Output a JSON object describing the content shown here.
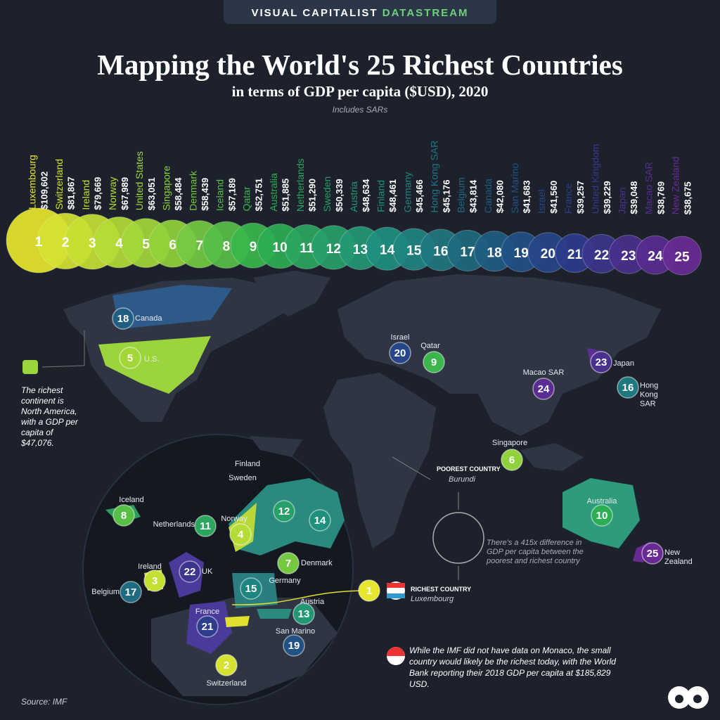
{
  "header": {
    "brand": "VISUAL CAPITALIST",
    "brand_accent": "DATASTREAM",
    "title": "Mapping the World's 25 Richest Countries",
    "subtitle": "in terms of GDP per capita ($USD), 2020",
    "note": "Includes SARs"
  },
  "countries": [
    {
      "rank": 1,
      "name": "Luxembourg",
      "gdp": 109602,
      "gdp_label": "$109,602"
    },
    {
      "rank": 2,
      "name": "Switzerland",
      "gdp": 81867,
      "gdp_label": "$81,867",
      "map_label": "Switzerland"
    },
    {
      "rank": 3,
      "name": "Ireland",
      "gdp": 79669,
      "gdp_label": "$79,669",
      "map_label": "Ireland"
    },
    {
      "rank": 4,
      "name": "Norway",
      "gdp": 67989,
      "gdp_label": "$67,989",
      "map_label": "Norway"
    },
    {
      "rank": 5,
      "name": "United States",
      "gdp": 63051,
      "gdp_label": "$63,051",
      "map_label": "U.S."
    },
    {
      "rank": 6,
      "name": "Singapore",
      "gdp": 58484,
      "gdp_label": "$58,484",
      "map_label": "Singapore"
    },
    {
      "rank": 7,
      "name": "Denmark",
      "gdp": 58439,
      "gdp_label": "$58,439",
      "map_label": "Denmark"
    },
    {
      "rank": 8,
      "name": "Iceland",
      "gdp": 57189,
      "gdp_label": "$57,189",
      "map_label": "Iceland"
    },
    {
      "rank": 9,
      "name": "Qatar",
      "gdp": 52751,
      "gdp_label": "$52,751",
      "map_label": "Qatar"
    },
    {
      "rank": 10,
      "name": "Australia",
      "gdp": 51885,
      "gdp_label": "$51,885",
      "map_label": "Australia"
    },
    {
      "rank": 11,
      "name": "Netherlands",
      "gdp": 51290,
      "gdp_label": "$51,290",
      "map_label": "Netherlands"
    },
    {
      "rank": 12,
      "name": "Sweden",
      "gdp": 50339,
      "gdp_label": "$50,339",
      "map_label": "Sweden"
    },
    {
      "rank": 13,
      "name": "Austria",
      "gdp": 48634,
      "gdp_label": "$48,634",
      "map_label": "Austria"
    },
    {
      "rank": 14,
      "name": "Finland",
      "gdp": 48461,
      "gdp_label": "$48,461",
      "map_label": "Finland"
    },
    {
      "rank": 15,
      "name": "Germany",
      "gdp": 45466,
      "gdp_label": "$45,466",
      "map_label": "Germany"
    },
    {
      "rank": 16,
      "name": "Hong Kong SAR",
      "gdp": 45176,
      "gdp_label": "$45,176",
      "map_label": "Hong Kong SAR"
    },
    {
      "rank": 17,
      "name": "Belgium",
      "gdp": 43814,
      "gdp_label": "$43,814",
      "map_label": "Belgium"
    },
    {
      "rank": 18,
      "name": "Canada",
      "gdp": 42080,
      "gdp_label": "$42,080",
      "map_label": "Canada"
    },
    {
      "rank": 19,
      "name": "San Marino",
      "gdp": 41683,
      "gdp_label": "$41,683",
      "map_label": "San Marino"
    },
    {
      "rank": 20,
      "name": "Israel",
      "gdp": 41560,
      "gdp_label": "$41,560",
      "map_label": "Israel"
    },
    {
      "rank": 21,
      "name": "France",
      "gdp": 39257,
      "gdp_label": "$39,257",
      "map_label": "France"
    },
    {
      "rank": 22,
      "name": "United Kingdom",
      "gdp": 39229,
      "gdp_label": "$39,229",
      "map_label": "UK"
    },
    {
      "rank": 23,
      "name": "Japan",
      "gdp": 39048,
      "gdp_label": "$39,048",
      "map_label": "Japan"
    },
    {
      "rank": 24,
      "name": "Macao SAR",
      "gdp": 38769,
      "gdp_label": "$38,769",
      "map_label": "Macao SAR"
    },
    {
      "rank": 25,
      "name": "New Zealand",
      "gdp": 38675,
      "gdp_label": "$38,675",
      "map_label": "New Zealand"
    }
  ],
  "annotations": {
    "continent": "The richest continent is North America, with a GDP per capita of $47,076.",
    "poorest_heading": "POOREST COUNTRY",
    "poorest_name": "Burundi",
    "richest_heading": "RICHEST COUNTRY",
    "richest_name": "Luxembourg",
    "difference": "There's a 415x difference in GDP per capita between the poorest and richest country",
    "monaco": "While the IMF did not have data on Monaco, the small country would likely be the richest today, with the World Bank reporting their 2018 GDP per capita at $185,829 USD."
  },
  "source": "Source: IMF"
}
